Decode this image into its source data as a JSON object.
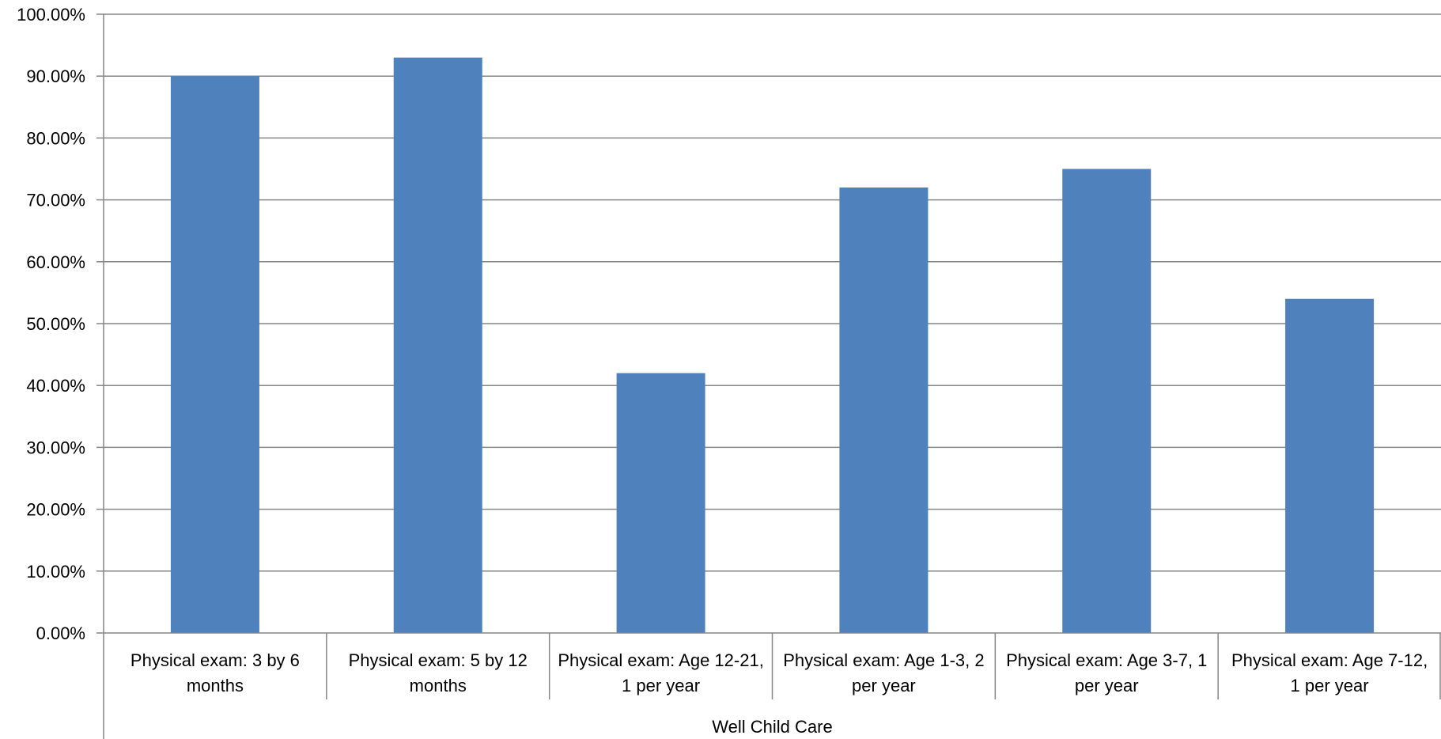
{
  "chart_data": {
    "type": "bar",
    "title": "",
    "xlabel": "",
    "ylabel": "",
    "group_label": "Well Child Care",
    "categories": [
      [
        "Physical exam: 3 by 6",
        "months"
      ],
      [
        "Physical exam: 5 by 12",
        "months"
      ],
      [
        "Physical exam: Age 12-21,",
        "1 per year"
      ],
      [
        "Physical exam: Age 1-3, 2",
        "per year"
      ],
      [
        "Physical exam: Age 3-7, 1",
        "per year"
      ],
      [
        "Physical exam: Age 7-12,",
        "1 per year"
      ]
    ],
    "values": [
      0.9,
      0.93,
      0.42,
      0.72,
      0.75,
      0.54
    ],
    "ylim": [
      0,
      1.0
    ],
    "yticks": [
      "0.00%",
      "10.00%",
      "20.00%",
      "30.00%",
      "40.00%",
      "50.00%",
      "60.00%",
      "70.00%",
      "80.00%",
      "90.00%",
      "100.00%"
    ],
    "grid": true,
    "legend": "none",
    "colors": {
      "bar": "#4F81BD",
      "grid": "#868686",
      "axis": "#868686"
    }
  }
}
